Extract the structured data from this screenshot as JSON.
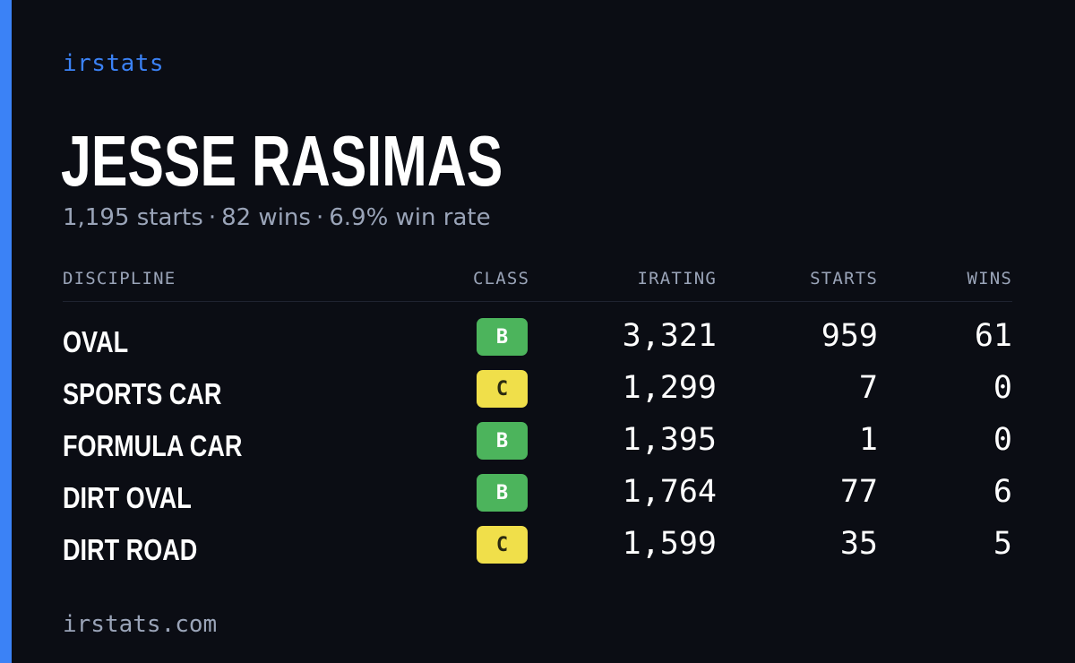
{
  "brand": "irstats",
  "driver": {
    "name": "JESSE RASIMAS",
    "starts": "1,195 starts",
    "wins": "82 wins",
    "win_rate": "6.9% win rate",
    "separator": "·"
  },
  "table": {
    "headers": {
      "discipline": "DISCIPLINE",
      "class": "CLASS",
      "irating": "IRATING",
      "starts": "STARTS",
      "wins": "WINS"
    },
    "rows": [
      {
        "discipline": "OVAL",
        "class": "B",
        "irating": "3,321",
        "starts": "959",
        "wins": "61"
      },
      {
        "discipline": "SPORTS CAR",
        "class": "C",
        "irating": "1,299",
        "starts": "7",
        "wins": "0"
      },
      {
        "discipline": "FORMULA CAR",
        "class": "B",
        "irating": "1,395",
        "starts": "1",
        "wins": "0"
      },
      {
        "discipline": "DIRT OVAL",
        "class": "B",
        "irating": "1,764",
        "starts": "77",
        "wins": "6"
      },
      {
        "discipline": "DIRT ROAD",
        "class": "C",
        "irating": "1,599",
        "starts": "35",
        "wins": "5"
      }
    ]
  },
  "colors": {
    "accent": "#3b82f6",
    "class_b": "#4cb45c",
    "class_c": "#f0df4a",
    "background": "#0b0d14"
  },
  "footer": "irstats.com"
}
